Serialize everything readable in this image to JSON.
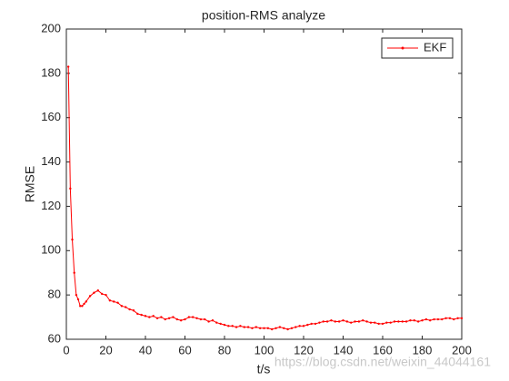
{
  "chart_data": {
    "type": "line",
    "title": "position-RMS analyze",
    "x_label": "t/s",
    "y_label": "RMSE",
    "x": [
      1,
      2,
      3,
      4,
      5,
      6,
      7,
      8,
      9,
      10,
      12,
      14,
      16,
      18,
      20,
      22,
      24,
      26,
      28,
      30,
      32,
      34,
      36,
      38,
      40,
      42,
      44,
      46,
      48,
      50,
      52,
      54,
      56,
      58,
      60,
      62,
      64,
      66,
      68,
      70,
      72,
      74,
      76,
      78,
      80,
      82,
      84,
      86,
      88,
      90,
      92,
      94,
      96,
      98,
      100,
      102,
      104,
      106,
      108,
      110,
      112,
      114,
      116,
      118,
      120,
      122,
      124,
      126,
      128,
      130,
      132,
      134,
      136,
      138,
      140,
      142,
      144,
      146,
      148,
      150,
      152,
      154,
      156,
      158,
      160,
      162,
      164,
      166,
      168,
      170,
      172,
      174,
      176,
      178,
      180,
      182,
      184,
      186,
      188,
      190,
      192,
      194,
      196,
      198,
      200
    ],
    "series": [
      {
        "name": "EKF",
        "color": "#ff0000",
        "values": [
          183,
          128,
          105,
          90,
          80,
          78,
          75,
          75,
          76,
          77,
          79.5,
          81,
          82,
          80.5,
          80,
          77.5,
          77,
          76.5,
          75,
          74.5,
          73.5,
          73,
          71.5,
          71,
          70.5,
          70,
          70.5,
          69.5,
          70,
          69,
          69.5,
          70,
          69,
          68.5,
          69,
          70,
          70,
          69.5,
          69,
          69,
          68,
          68.5,
          67.5,
          67,
          66.5,
          66,
          66,
          65.5,
          66,
          65.5,
          65.5,
          65,
          65.5,
          65,
          65,
          65,
          64.5,
          65,
          65.5,
          65,
          64.5,
          65,
          65.5,
          66,
          66,
          66.5,
          67,
          67,
          67.5,
          68,
          68,
          68.5,
          68,
          68,
          68.5,
          68,
          67.5,
          68,
          68,
          68.5,
          68,
          67.5,
          67.5,
          67,
          67,
          67.5,
          67.5,
          68,
          68,
          68,
          68,
          68.5,
          68.5,
          68,
          68.5,
          69,
          68.5,
          69,
          69,
          69,
          69.5,
          69.5,
          69,
          69.5,
          69.5
        ]
      }
    ],
    "xlim": [
      0,
      200
    ],
    "ylim": [
      60,
      200
    ],
    "xticks": [
      0,
      20,
      40,
      60,
      80,
      100,
      120,
      140,
      160,
      180,
      200
    ],
    "yticks": [
      60,
      80,
      100,
      120,
      140,
      160,
      180,
      200
    ],
    "legend_position": "upper-right",
    "watermark": "https://blog.csdn.net/weixin_44044161"
  }
}
